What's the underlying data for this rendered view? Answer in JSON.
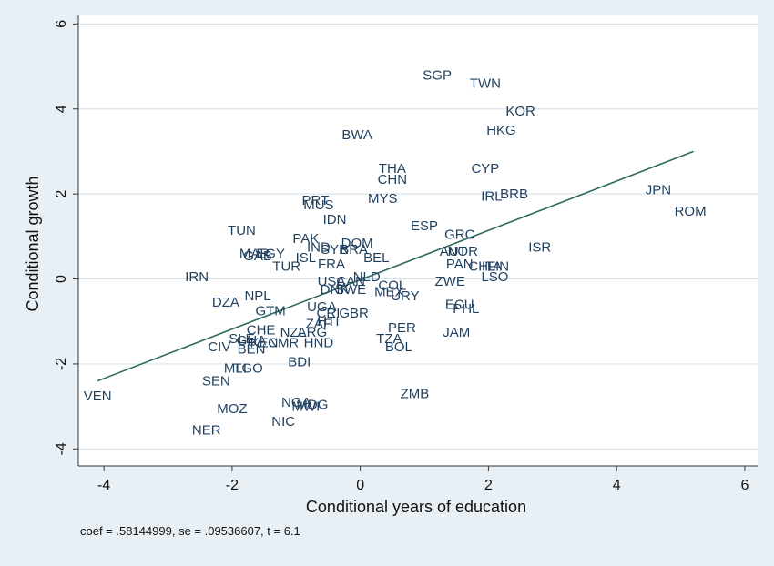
{
  "chart_data": {
    "type": "scatter",
    "xlabel": "Conditional years of education",
    "ylabel": "Conditional growth",
    "xlim": [
      -4.4,
      6.2
    ],
    "ylim": [
      -4.4,
      6.2
    ],
    "xticks": [
      -4,
      -2,
      0,
      2,
      4,
      6
    ],
    "yticks": [
      -4,
      -2,
      0,
      2,
      4,
      6
    ],
    "x_tick_labels": [
      "-4",
      "-2",
      "0",
      "2",
      "4",
      "6"
    ],
    "y_tick_labels": [
      "-4",
      "-2",
      "0",
      "2",
      "4",
      "6"
    ],
    "grid": "horizontal",
    "points": [
      {
        "label": "SGP",
        "x": 1.2,
        "y": 4.8
      },
      {
        "label": "TWN",
        "x": 1.95,
        "y": 4.6
      },
      {
        "label": "KOR",
        "x": 2.5,
        "y": 3.95
      },
      {
        "label": "HKG",
        "x": 2.2,
        "y": 3.5
      },
      {
        "label": "BWA",
        "x": -0.05,
        "y": 3.4
      },
      {
        "label": "THA",
        "x": 0.5,
        "y": 2.6
      },
      {
        "label": "CHN",
        "x": 0.5,
        "y": 2.35
      },
      {
        "label": "CYP",
        "x": 1.95,
        "y": 2.6
      },
      {
        "label": "JPN",
        "x": 4.65,
        "y": 2.1
      },
      {
        "label": "ROM",
        "x": 5.15,
        "y": 1.6
      },
      {
        "label": "IRL",
        "x": 2.05,
        "y": 1.95
      },
      {
        "label": "BRB",
        "x": 2.4,
        "y": 2.0
      },
      {
        "label": "MYS",
        "x": 0.35,
        "y": 1.9
      },
      {
        "label": "PRT",
        "x": -0.7,
        "y": 1.85
      },
      {
        "label": "MUS",
        "x": -0.65,
        "y": 1.75
      },
      {
        "label": "IDN",
        "x": -0.4,
        "y": 1.4
      },
      {
        "label": "ESP",
        "x": 1.0,
        "y": 1.25
      },
      {
        "label": "GRC",
        "x": 1.55,
        "y": 1.05
      },
      {
        "label": "TUN",
        "x": -1.85,
        "y": 1.15
      },
      {
        "label": "PAK",
        "x": -0.85,
        "y": 0.95
      },
      {
        "label": "DOM",
        "x": -0.05,
        "y": 0.85
      },
      {
        "label": "IND",
        "x": -0.65,
        "y": 0.75
      },
      {
        "label": "SYR",
        "x": -0.4,
        "y": 0.7
      },
      {
        "label": "BRA",
        "x": -0.1,
        "y": 0.7
      },
      {
        "label": "ISR",
        "x": 2.8,
        "y": 0.75
      },
      {
        "label": "AUT",
        "x": 1.45,
        "y": 0.65
      },
      {
        "label": "NOR",
        "x": 1.6,
        "y": 0.65
      },
      {
        "label": "MAR",
        "x": -1.65,
        "y": 0.6
      },
      {
        "label": "EGY",
        "x": -1.4,
        "y": 0.6
      },
      {
        "label": "GAB",
        "x": -1.6,
        "y": 0.55
      },
      {
        "label": "ISL",
        "x": -0.85,
        "y": 0.5
      },
      {
        "label": "BEL",
        "x": 0.25,
        "y": 0.5
      },
      {
        "label": "FRA",
        "x": -0.45,
        "y": 0.35
      },
      {
        "label": "TUR",
        "x": -1.15,
        "y": 0.3
      },
      {
        "label": "PAN",
        "x": 1.55,
        "y": 0.35
      },
      {
        "label": "CHL",
        "x": 1.9,
        "y": 0.3
      },
      {
        "label": "ITA",
        "x": 2.05,
        "y": 0.3
      },
      {
        "label": "FIN",
        "x": 2.15,
        "y": 0.3
      },
      {
        "label": "LSO",
        "x": 2.1,
        "y": 0.05
      },
      {
        "label": "IRN",
        "x": -2.55,
        "y": 0.05
      },
      {
        "label": "NLD",
        "x": 0.1,
        "y": 0.05
      },
      {
        "label": "USA",
        "x": -0.45,
        "y": -0.05
      },
      {
        "label": "CAN",
        "x": -0.15,
        "y": -0.05
      },
      {
        "label": "COL",
        "x": 0.5,
        "y": -0.15
      },
      {
        "label": "ZWE",
        "x": 1.4,
        "y": -0.05
      },
      {
        "label": "DNK",
        "x": -0.4,
        "y": -0.25
      },
      {
        "label": "SWE",
        "x": -0.15,
        "y": -0.25
      },
      {
        "label": "MEX",
        "x": 0.45,
        "y": -0.3
      },
      {
        "label": "URY",
        "x": 0.7,
        "y": -0.4
      },
      {
        "label": "DZA",
        "x": -2.1,
        "y": -0.55
      },
      {
        "label": "NPL",
        "x": -1.6,
        "y": -0.4
      },
      {
        "label": "ECU",
        "x": 1.55,
        "y": -0.6
      },
      {
        "label": "PHL",
        "x": 1.65,
        "y": -0.7
      },
      {
        "label": "GTM",
        "x": -1.4,
        "y": -0.75
      },
      {
        "label": "UGA",
        "x": -0.6,
        "y": -0.65
      },
      {
        "label": "CRI",
        "x": -0.5,
        "y": -0.8
      },
      {
        "label": "GBR",
        "x": -0.1,
        "y": -0.8
      },
      {
        "label": "ZAF",
        "x": -0.65,
        "y": -1.05
      },
      {
        "label": "HTI",
        "x": -0.5,
        "y": -1.0
      },
      {
        "label": "PER",
        "x": 0.65,
        "y": -1.15
      },
      {
        "label": "CHE",
        "x": -1.55,
        "y": -1.2
      },
      {
        "label": "NZL",
        "x": -1.05,
        "y": -1.25
      },
      {
        "label": "ARG",
        "x": -0.75,
        "y": -1.25
      },
      {
        "label": "JAM",
        "x": 1.5,
        "y": -1.25
      },
      {
        "label": "SLE",
        "x": -1.85,
        "y": -1.4
      },
      {
        "label": "GHA",
        "x": -1.7,
        "y": -1.45
      },
      {
        "label": "KEN",
        "x": -1.5,
        "y": -1.5
      },
      {
        "label": "CMR",
        "x": -1.2,
        "y": -1.5
      },
      {
        "label": "HND",
        "x": -0.65,
        "y": -1.5
      },
      {
        "label": "TZA",
        "x": 0.45,
        "y": -1.4
      },
      {
        "label": "BOL",
        "x": 0.6,
        "y": -1.6
      },
      {
        "label": "CIV",
        "x": -2.2,
        "y": -1.6
      },
      {
        "label": "BEN",
        "x": -1.7,
        "y": -1.65
      },
      {
        "label": "BDI",
        "x": -0.95,
        "y": -1.95
      },
      {
        "label": "MLI",
        "x": -1.95,
        "y": -2.1
      },
      {
        "label": "TGO",
        "x": -1.75,
        "y": -2.1
      },
      {
        "label": "SEN",
        "x": -2.25,
        "y": -2.4
      },
      {
        "label": "ZMB",
        "x": 0.85,
        "y": -2.7
      },
      {
        "label": "VEN",
        "x": -4.1,
        "y": -2.75
      },
      {
        "label": "NGA",
        "x": -1.0,
        "y": -2.9
      },
      {
        "label": "MDG",
        "x": -0.75,
        "y": -2.95
      },
      {
        "label": "MWI",
        "x": -0.85,
        "y": -3.0
      },
      {
        "label": "MOZ",
        "x": -2.0,
        "y": -3.05
      },
      {
        "label": "NIC",
        "x": -1.2,
        "y": -3.35
      },
      {
        "label": "NER",
        "x": -2.4,
        "y": -3.55
      }
    ],
    "fit_line": {
      "x1": -4.1,
      "y1": -2.4,
      "x2": 5.2,
      "y2": 3.0,
      "color": "#2e6b5e"
    },
    "note": "coef = .58144999, se = .09536607, t = 6.1"
  },
  "colors": {
    "background": "#e9f0f5",
    "plot_area": "#ffffff",
    "label_color": "#1f3f5f",
    "grid_color": "#d9e3ec"
  }
}
